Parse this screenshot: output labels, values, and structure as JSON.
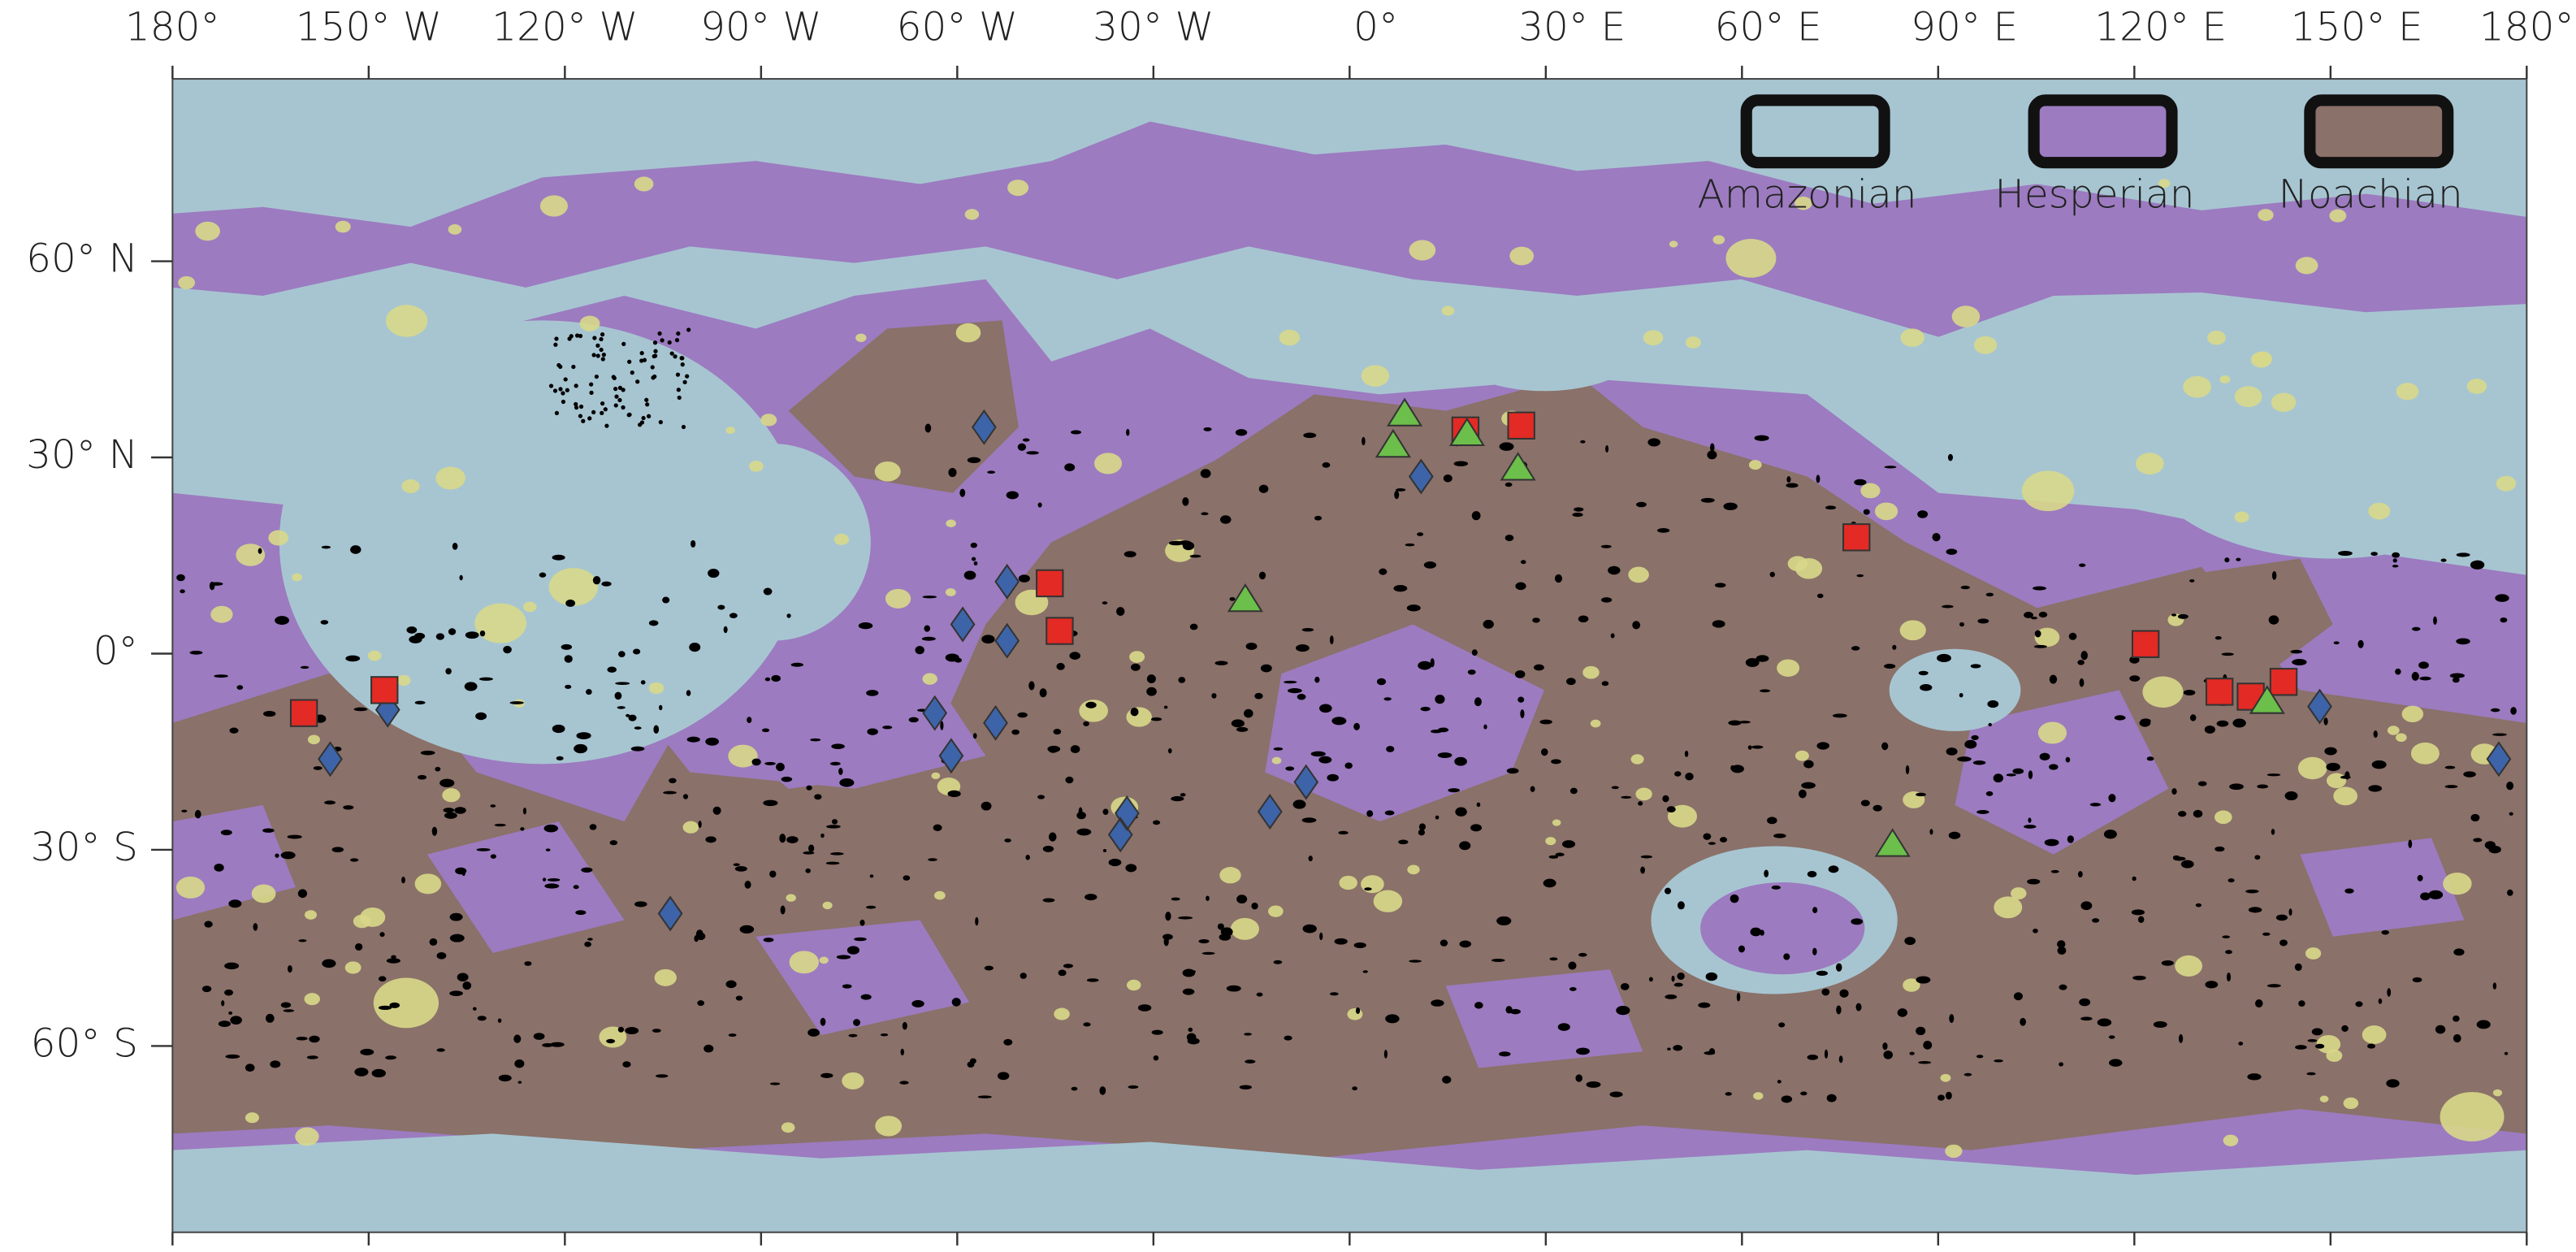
{
  "map": {
    "top_axis_labels": [
      "180°",
      "150° W",
      "120° W",
      "90° W",
      "60° W",
      "30° W",
      "0°",
      "30° E",
      "60° E",
      "90° E",
      "120° E",
      "150° E",
      "180°"
    ],
    "left_axis_labels": [
      "60° N",
      "30° N",
      "0°",
      "30° S",
      "60° S"
    ],
    "legend": [
      {
        "label": "Amazonian",
        "color": "#a7c5d1"
      },
      {
        "label": "Hesperian",
        "color": "#9c7bc0"
      },
      {
        "label": "Noachian",
        "color": "#8a7169"
      }
    ]
  }
}
